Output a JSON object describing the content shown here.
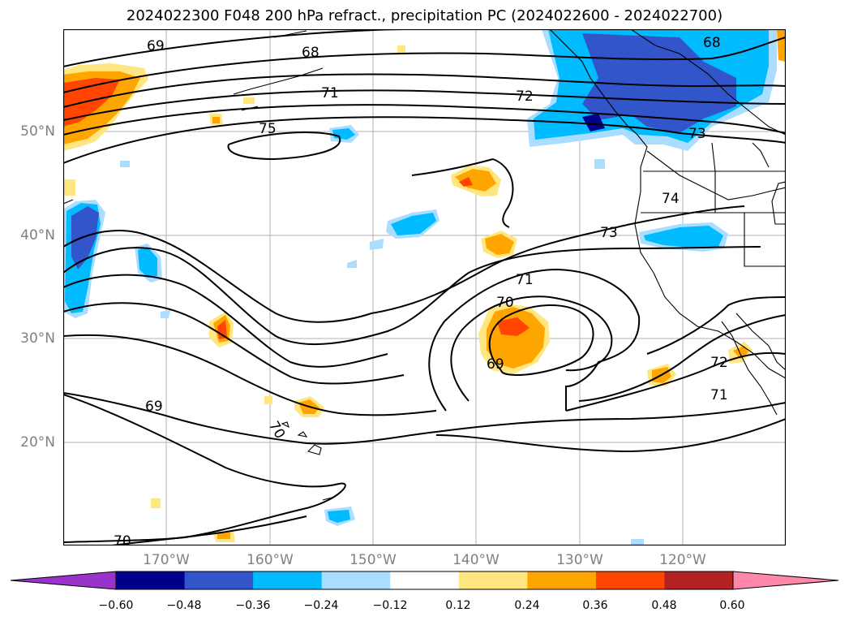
{
  "title": "2024022300 F048 200 hPa refract., precipitation PC (2024022600 - 2024022700)",
  "lat_labels": [
    "50°N",
    "40°N",
    "30°N",
    "20°N"
  ],
  "lon_labels": [
    "170°W",
    "160°W",
    "150°W",
    "140°W",
    "130°W",
    "120°W"
  ],
  "colorbar": {
    "ticks": [
      "−0.60",
      "−0.48",
      "−0.36",
      "−0.24",
      "−0.12",
      "0.12",
      "0.24",
      "0.36",
      "0.48",
      "0.60"
    ],
    "colors": [
      "#9933cc",
      "#00008b",
      "#3355cc",
      "#00bbff",
      "#aaddff",
      "#ffffff",
      "#ffe680",
      "#ffa500",
      "#ff4500",
      "#b22222",
      "#ff88aa"
    ]
  },
  "contour_labels": [
    "69",
    "68",
    "71",
    "72",
    "75",
    "68",
    "73",
    "74",
    "73",
    "71",
    "70",
    "69",
    "69",
    "70",
    "72",
    "71",
    "70"
  ]
}
